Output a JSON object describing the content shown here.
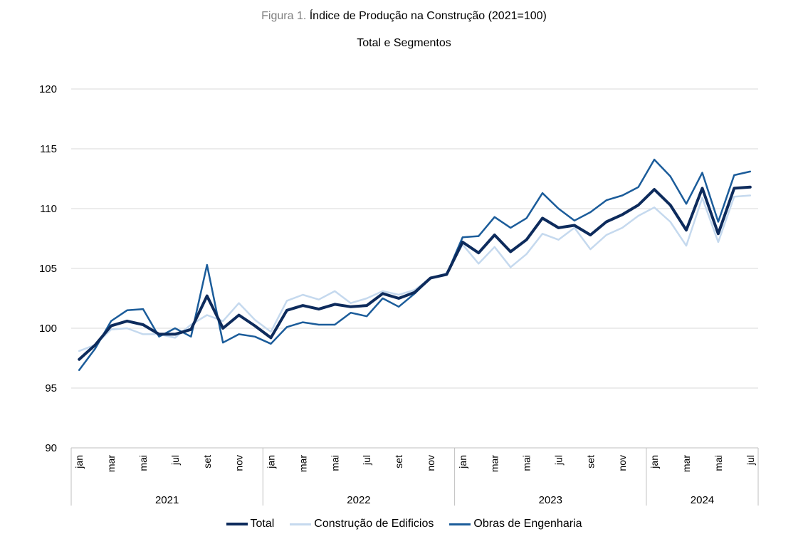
{
  "header": {
    "title_prefix": "Figura 1.",
    "title": "Índice de Produção na Construção (2021=100)",
    "subtitle": "Total e Segmentos"
  },
  "colors": {
    "total": "#0d2b5c",
    "edificios": "#c5d9ee",
    "engenharia": "#1b5c9a",
    "grid": "#d9d9d9",
    "axis": "#bfbfbf"
  },
  "chart_data": {
    "type": "line",
    "title": "Índice de Produção na Construção (2021=100)",
    "subtitle": "Total e Segmentos",
    "ylim": [
      90,
      120
    ],
    "yticks": [
      90,
      95,
      100,
      105,
      110,
      115,
      120
    ],
    "years": [
      {
        "label": "2021",
        "months": [
          "jan",
          "mar",
          "mai",
          "jul",
          "set",
          "nov"
        ],
        "count": 12
      },
      {
        "label": "2022",
        "months": [
          "jan",
          "mar",
          "mai",
          "jul",
          "set",
          "nov"
        ],
        "count": 12
      },
      {
        "label": "2023",
        "months": [
          "jan",
          "mar",
          "mai",
          "jul",
          "set",
          "nov"
        ],
        "count": 12
      },
      {
        "label": "2024",
        "months": [
          "jan",
          "mar",
          "mai",
          "jul"
        ],
        "count": 7
      }
    ],
    "series": [
      {
        "name": "Total",
        "key": "total",
        "values": [
          97.4,
          98.6,
          100.2,
          100.6,
          100.3,
          99.5,
          99.5,
          99.9,
          102.7,
          100.0,
          101.1,
          100.2,
          99.2,
          101.5,
          101.9,
          101.6,
          102.0,
          101.8,
          101.9,
          102.9,
          102.5,
          103.0,
          104.2,
          104.5,
          107.2,
          106.3,
          107.8,
          106.4,
          107.4,
          109.2,
          108.4,
          108.6,
          107.8,
          108.9,
          109.5,
          110.3,
          111.6,
          110.3,
          108.2,
          111.7,
          107.9,
          111.7,
          111.8
        ]
      },
      {
        "name": "Construção de Edificios",
        "key": "edificios",
        "values": [
          98.1,
          98.6,
          99.9,
          100.0,
          99.5,
          99.5,
          99.2,
          100.3,
          101.1,
          100.6,
          102.1,
          100.7,
          99.7,
          102.3,
          102.8,
          102.4,
          103.1,
          102.1,
          102.5,
          103.1,
          102.8,
          103.2,
          104.2,
          104.6,
          107.0,
          105.4,
          106.8,
          105.1,
          106.2,
          107.9,
          107.4,
          108.4,
          106.6,
          107.8,
          108.4,
          109.4,
          110.1,
          108.9,
          106.9,
          110.9,
          107.2,
          111.0,
          111.1
        ]
      },
      {
        "name": "Obras de Engenharia",
        "key": "engenharia",
        "values": [
          96.5,
          98.3,
          100.6,
          101.5,
          101.6,
          99.3,
          100.0,
          99.3,
          105.3,
          98.8,
          99.5,
          99.3,
          98.7,
          100.1,
          100.5,
          100.3,
          100.3,
          101.3,
          101.0,
          102.5,
          101.8,
          102.9,
          104.2,
          104.5,
          107.6,
          107.7,
          109.3,
          108.4,
          109.2,
          111.3,
          110.0,
          109.0,
          109.7,
          110.7,
          111.1,
          111.8,
          114.1,
          112.7,
          110.4,
          113.0,
          108.9,
          112.8,
          113.1
        ]
      }
    ]
  },
  "legend": {
    "items": [
      {
        "label": "Total",
        "key": "total"
      },
      {
        "label": "Construção de Edificios",
        "key": "edificios"
      },
      {
        "label": "Obras de Engenharia",
        "key": "engenharia"
      }
    ]
  }
}
